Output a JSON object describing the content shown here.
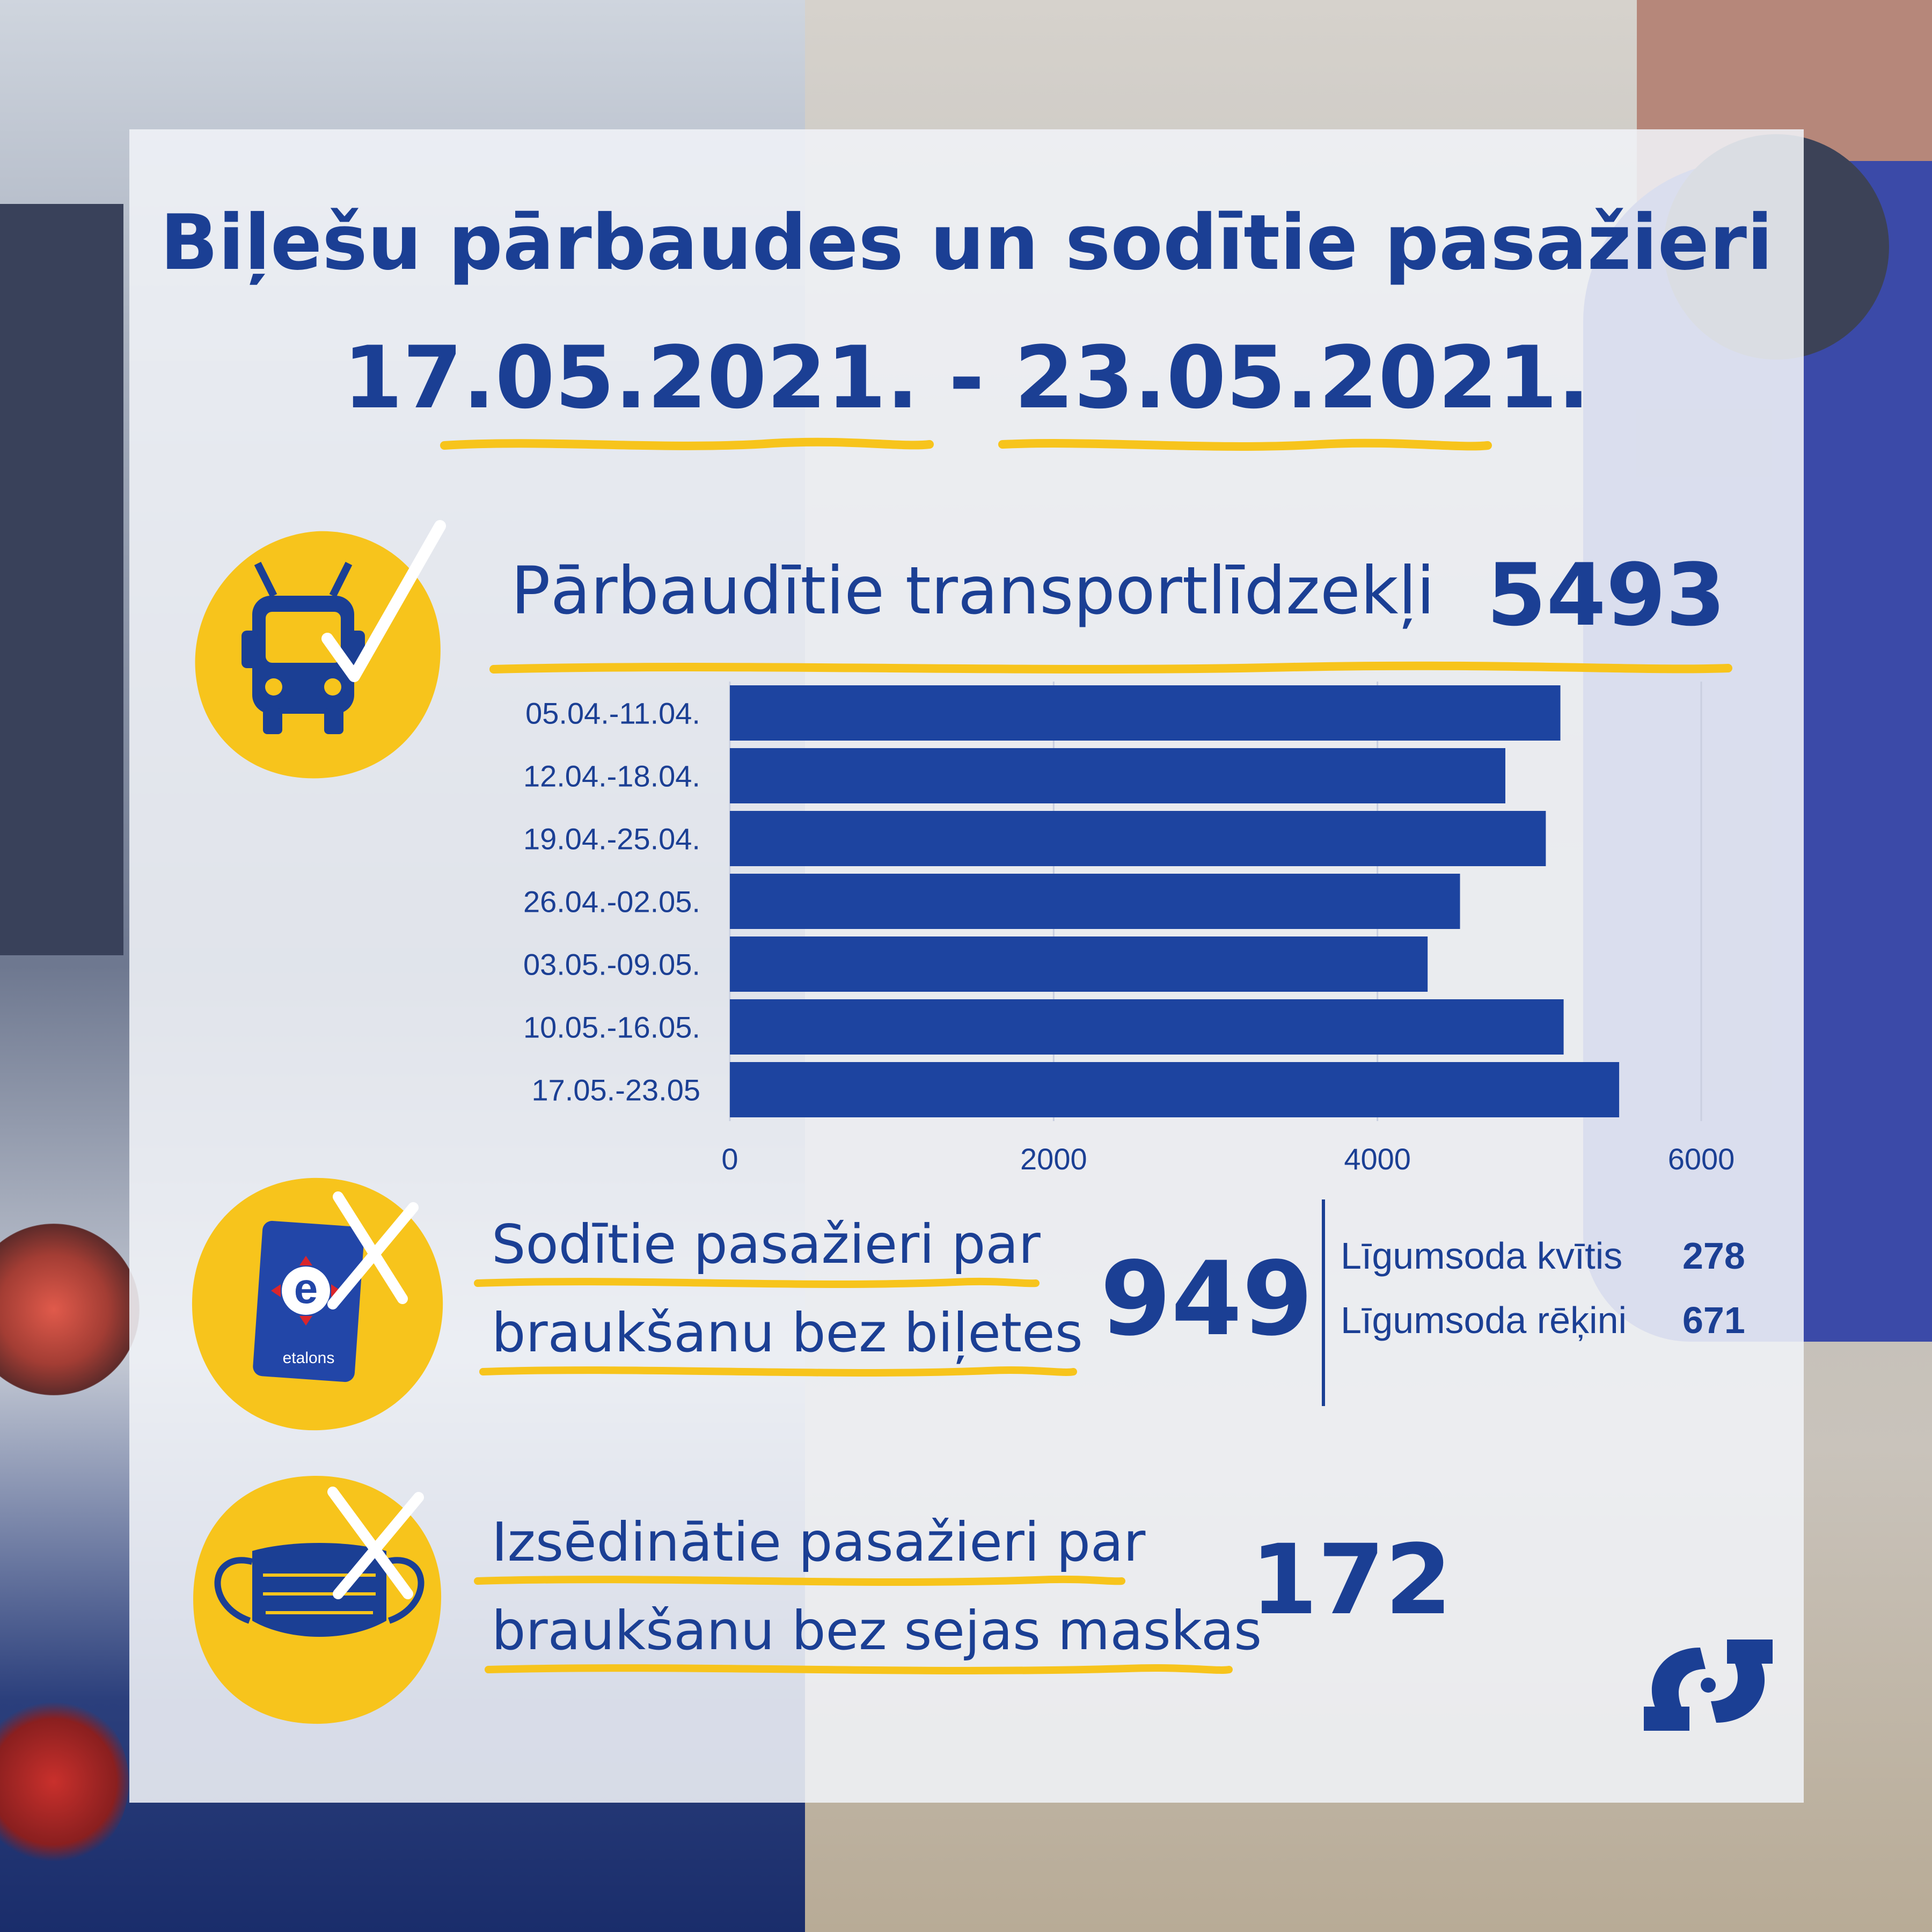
{
  "header": {
    "title": "Biļešu pārbaudes un sodītie pasažieri",
    "period": "17.05.2021. - 23.05.2021."
  },
  "colors": {
    "brand_blue": "#1b3f94",
    "bar_blue": "#1d44a0",
    "accent_yellow": "#f7c41c"
  },
  "vehicles": {
    "icon": "bus-check-icon",
    "label": "Pārbaudītie transportlīdzekļi",
    "value": "5493"
  },
  "fines": {
    "icon": "etalons-card-cross-icon",
    "label_line1": "Sodītie pasažieri par",
    "label_line2": "braukšanu bez biļetes",
    "value": "949",
    "card_text": "etalons",
    "breakdown": [
      {
        "label": "Līgumsoda kvītis",
        "value": "278"
      },
      {
        "label": "Līgumsoda rēķini",
        "value": "671"
      }
    ]
  },
  "masks": {
    "icon": "face-mask-cross-icon",
    "label_line1": "Izsēdinātie pasažieri par",
    "label_line2": "braukšanu bez sejas maskas",
    "value": "172"
  },
  "chart_data": {
    "type": "bar",
    "orientation": "horizontal",
    "categories": [
      "05.04.-11.04.",
      "12.04.-18.04.",
      "19.04.-25.04.",
      "26.04.-02.05.",
      "03.05.-09.05.",
      "10.05.-16.05.",
      "17.05.-23.05"
    ],
    "values": [
      5130,
      4790,
      5040,
      4510,
      4310,
      5150,
      5493
    ],
    "xlim": [
      0,
      6000
    ],
    "xticks": [
      "0",
      "2000",
      "4000",
      "6000"
    ],
    "grid": true
  }
}
